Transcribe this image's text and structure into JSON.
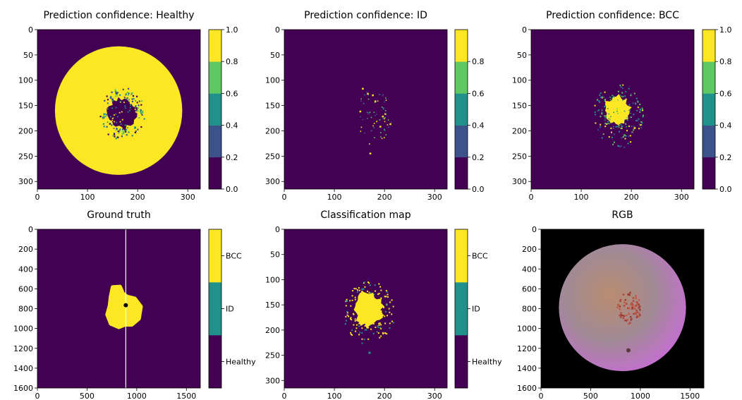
{
  "palette": {
    "viridis_5": [
      "#440154",
      "#3b528b",
      "#21918c",
      "#5ec962",
      "#fde725"
    ],
    "viridis_3": [
      "#440154",
      "#21918c",
      "#fde725"
    ],
    "gt_line": "#ffffff",
    "gt_marker": "#000000"
  },
  "chart_data": [
    {
      "type": "heatmap",
      "title": "Prediction confidence: Healthy",
      "xlim": [
        0,
        325
      ],
      "ylim": [
        315,
        0
      ],
      "xticks": [
        0,
        100,
        200,
        300
      ],
      "yticks": [
        0,
        50,
        100,
        150,
        200,
        250,
        300
      ],
      "colorbar": {
        "ticks": [
          "0.0",
          "0.2",
          "0.4",
          "0.6",
          "0.8",
          "1.0"
        ],
        "range": [
          0,
          1
        ],
        "levels": 5
      },
      "mask_circle": {
        "cx": 162,
        "cy": 160,
        "r": 127
      },
      "value_inside_mask": 1.0,
      "background_value": 0.0,
      "low_region": {
        "center": [
          168,
          165
        ],
        "rx": 38,
        "ry": 45,
        "value": 0.0
      }
    },
    {
      "type": "heatmap",
      "title": "Prediction confidence: ID",
      "xlim": [
        0,
        325
      ],
      "ylim": [
        315,
        0
      ],
      "xticks": [
        0,
        100,
        200,
        300
      ],
      "yticks": [
        0,
        50,
        100,
        150,
        200,
        250,
        300
      ],
      "colorbar": {
        "ticks": [
          "0.0",
          "0.2",
          "0.4",
          "0.6",
          "0.8"
        ],
        "range": [
          0,
          1
        ],
        "levels": 5
      },
      "background_value": 0.0,
      "scattered_high_points": [
        [
          155,
          115
        ],
        [
          165,
          125
        ],
        [
          180,
          140
        ],
        [
          190,
          190
        ],
        [
          200,
          165
        ],
        [
          170,
          243
        ],
        [
          210,
          185
        ],
        [
          150,
          160
        ],
        [
          175,
          128
        ],
        [
          195,
          170
        ]
      ]
    },
    {
      "type": "heatmap",
      "title": "Prediction confidence: BCC",
      "xlim": [
        0,
        325
      ],
      "ylim": [
        315,
        0
      ],
      "xticks": [
        0,
        100,
        200,
        300
      ],
      "yticks": [
        0,
        50,
        100,
        150,
        200,
        250,
        300
      ],
      "colorbar": {
        "ticks": [
          "0.0",
          "0.2",
          "0.4",
          "0.6",
          "0.8",
          "1.0"
        ],
        "range": [
          0,
          1
        ],
        "levels": 5
      },
      "background_value": 0.0,
      "high_region": {
        "center": [
          172,
          160
        ],
        "rx": 32,
        "ry": 40,
        "value": 1.0
      }
    },
    {
      "type": "heatmap",
      "title": "Ground truth",
      "xlim": [
        0,
        1640
      ],
      "ylim": [
        1600,
        0
      ],
      "xticks": [
        0,
        500,
        1000,
        1500
      ],
      "yticks": [
        0,
        200,
        400,
        600,
        800,
        1000,
        1200,
        1400,
        1600
      ],
      "colorbar": {
        "labels": [
          "Healthy",
          "ID",
          "BCC"
        ]
      },
      "background_class": "Healthy",
      "lesion": {
        "class": "BCC",
        "center": [
          870,
          800
        ],
        "extent_x": [
          705,
          1040
        ],
        "extent_y": [
          580,
          980
        ]
      },
      "vertical_line_x": 890,
      "markers": [
        [
          890,
          765
        ]
      ]
    },
    {
      "type": "heatmap",
      "title": "Classification map",
      "xlim": [
        0,
        325
      ],
      "ylim": [
        315,
        0
      ],
      "xticks": [
        0,
        100,
        200,
        300
      ],
      "yticks": [
        0,
        50,
        100,
        150,
        200,
        250,
        300
      ],
      "colorbar": {
        "labels": [
          "Healthy",
          "ID",
          "BCC"
        ]
      },
      "background_class": "Healthy",
      "bcc_region": {
        "center": [
          168,
          160
        ],
        "rx": 38,
        "ry": 45
      }
    },
    {
      "type": "image",
      "title": "RGB",
      "xlim": [
        0,
        1640
      ],
      "ylim": [
        1600,
        0
      ],
      "xticks": [
        0,
        500,
        1000,
        1500
      ],
      "yticks": [
        0,
        200,
        400,
        600,
        800,
        1000,
        1200,
        1400,
        1600
      ],
      "background": "#000000",
      "skin_circle": {
        "cx": 820,
        "cy": 790,
        "r": 640
      },
      "skin_colors": {
        "top": "#a08a95",
        "center": "#b98c70",
        "bottom_left": "#c46fcf"
      }
    }
  ]
}
